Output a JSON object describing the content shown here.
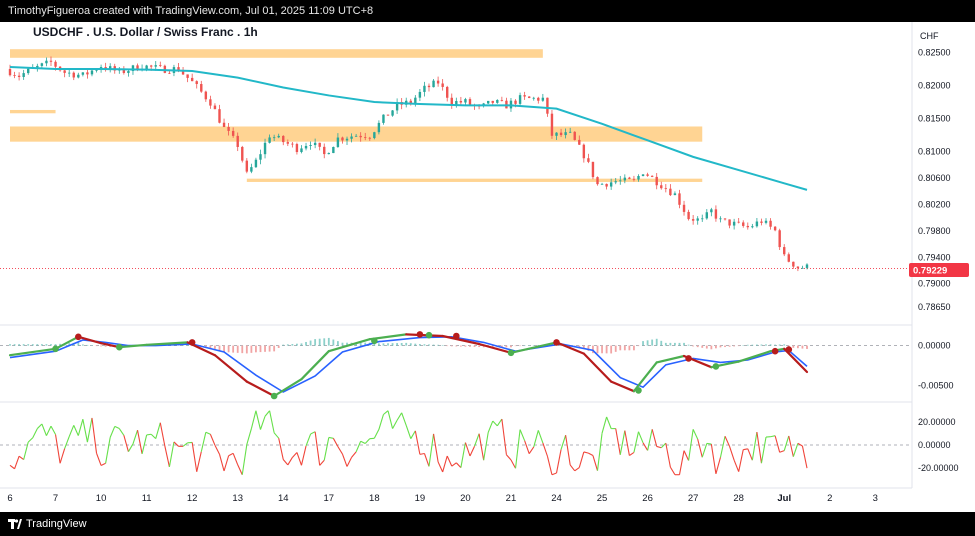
{
  "header": {
    "attribution": "TimothyFigueroa created with TradingView.com, Jul 01, 2025 11:09 UTC+8"
  },
  "footer": {
    "brand": "TradingView"
  },
  "colors": {
    "up": "#26a69a",
    "down": "#ef5350",
    "ma": "#22b8c8",
    "zone": "#ffcc80",
    "price_badge": "#f23645",
    "stoch_up": "#4caf50",
    "stoch_down": "#b71c1c"
  },
  "chart_data": {
    "type": "candlestick",
    "title": "USDCHF . U.S. Dollar / Swiss Franc . 1h",
    "currency": "CHF",
    "last_price": "0.79229",
    "price_ticks": [
      "0.82500",
      "0.82000",
      "0.81500",
      "0.81000",
      "0.80600",
      "0.80200",
      "0.79800",
      "0.79400",
      "0.79000",
      "0.78650"
    ],
    "price_tick_values": [
      0.825,
      0.82,
      0.815,
      0.81,
      0.806,
      0.802,
      0.798,
      0.794,
      0.79,
      0.7865
    ],
    "ylim": [
      0.7845,
      0.8275
    ],
    "time_labels": [
      "6",
      "7",
      "10",
      "11",
      "12",
      "13",
      "14",
      "17",
      "18",
      "19",
      "20",
      "21",
      "24",
      "25",
      "26",
      "27",
      "28",
      "Jul",
      "2",
      "3"
    ],
    "time_label_index": [
      0,
      10,
      20,
      30,
      40,
      50,
      60,
      70,
      80,
      90,
      100,
      110,
      120,
      130,
      140,
      150,
      160,
      170,
      180,
      190
    ],
    "index_range": [
      0,
      195
    ],
    "price_path": [
      [
        0,
        0.8225
      ],
      [
        3,
        0.8215
      ],
      [
        6,
        0.8225
      ],
      [
        10,
        0.8235
      ],
      [
        13,
        0.822
      ],
      [
        17,
        0.8215
      ],
      [
        21,
        0.823
      ],
      [
        25,
        0.822
      ],
      [
        30,
        0.823
      ],
      [
        34,
        0.8225
      ],
      [
        38,
        0.8225
      ],
      [
        41,
        0.8205
      ],
      [
        45,
        0.8175
      ],
      [
        48,
        0.8135
      ],
      [
        51,
        0.811
      ],
      [
        53,
        0.8065
      ],
      [
        55,
        0.8085
      ],
      [
        58,
        0.8125
      ],
      [
        61,
        0.8115
      ],
      [
        64,
        0.8105
      ],
      [
        67,
        0.8115
      ],
      [
        70,
        0.8095
      ],
      [
        73,
        0.812
      ],
      [
        77,
        0.8125
      ],
      [
        80,
        0.8125
      ],
      [
        83,
        0.815
      ],
      [
        86,
        0.817
      ],
      [
        89,
        0.8175
      ],
      [
        92,
        0.8195
      ],
      [
        95,
        0.8205
      ],
      [
        98,
        0.8175
      ],
      [
        101,
        0.8175
      ],
      [
        104,
        0.8165
      ],
      [
        107,
        0.8175
      ],
      [
        110,
        0.817
      ],
      [
        113,
        0.818
      ],
      [
        116,
        0.818
      ],
      [
        118,
        0.818
      ],
      [
        120,
        0.8125
      ],
      [
        124,
        0.8125
      ],
      [
        127,
        0.8095
      ],
      [
        130,
        0.805
      ],
      [
        134,
        0.8055
      ],
      [
        138,
        0.8055
      ],
      [
        140,
        0.807
      ],
      [
        143,
        0.8055
      ],
      [
        147,
        0.8035
      ],
      [
        150,
        0.8
      ],
      [
        153,
        0.7995
      ],
      [
        155,
        0.801
      ],
      [
        157,
        0.7995
      ],
      [
        160,
        0.799
      ],
      [
        163,
        0.7985
      ],
      [
        166,
        0.7995
      ],
      [
        169,
        0.798
      ],
      [
        171,
        0.794
      ],
      [
        174,
        0.7925
      ]
    ],
    "moving_average": [
      [
        0,
        0.8228
      ],
      [
        10,
        0.8225
      ],
      [
        20,
        0.8225
      ],
      [
        30,
        0.8224
      ],
      [
        40,
        0.8222
      ],
      [
        50,
        0.8212
      ],
      [
        60,
        0.8197
      ],
      [
        70,
        0.8185
      ],
      [
        80,
        0.8175
      ],
      [
        90,
        0.8172
      ],
      [
        100,
        0.817
      ],
      [
        110,
        0.817
      ],
      [
        120,
        0.8165
      ],
      [
        130,
        0.8142
      ],
      [
        140,
        0.8117
      ],
      [
        150,
        0.8092
      ],
      [
        160,
        0.8072
      ],
      [
        170,
        0.8052
      ],
      [
        175,
        0.8042
      ]
    ],
    "zones": [
      {
        "from_index": 0,
        "to_index": 117,
        "low": 0.8242,
        "high": 0.8255
      },
      {
        "from_index": 0,
        "to_index": 152,
        "low": 0.8115,
        "high": 0.8138
      },
      {
        "from_index": 0,
        "to_index": 10,
        "low": 0.8158,
        "high": 0.8163
      },
      {
        "from_index": 52,
        "to_index": 152,
        "low": 0.8054,
        "high": 0.8059
      }
    ],
    "oscillator": {
      "ticks": [
        "0.00000",
        "-0.00500"
      ],
      "tick_values": [
        0.0,
        -0.005
      ],
      "ylim": [
        -0.0068,
        0.0022
      ],
      "fast_path": [
        [
          0,
          -0.0012
        ],
        [
          10,
          -0.0004
        ],
        [
          15,
          0.0011
        ],
        [
          20,
          0.0003
        ],
        [
          24,
          -0.0002
        ],
        [
          30,
          0.0001
        ],
        [
          39,
          0.0004
        ],
        [
          45,
          -0.0012
        ],
        [
          52,
          -0.0045
        ],
        [
          58,
          -0.0063
        ],
        [
          64,
          -0.0042
        ],
        [
          70,
          -0.0007
        ],
        [
          79,
          0.0008
        ],
        [
          87,
          0.0014
        ],
        [
          95,
          0.0012
        ],
        [
          103,
          0.0002
        ],
        [
          110,
          -0.0009
        ],
        [
          120,
          0.0004
        ],
        [
          126,
          -0.001
        ],
        [
          132,
          -0.0045
        ],
        [
          137,
          -0.0057
        ],
        [
          142,
          -0.0021
        ],
        [
          148,
          -0.0013
        ],
        [
          154,
          -0.0027
        ],
        [
          160,
          -0.002
        ],
        [
          167,
          -0.0007
        ],
        [
          170,
          -0.0004
        ],
        [
          175,
          -0.0033
        ]
      ],
      "slow_path": [
        [
          0,
          -0.0015
        ],
        [
          10,
          -0.0007
        ],
        [
          16,
          0.0007
        ],
        [
          21,
          0.0004
        ],
        [
          26,
          0.0
        ],
        [
          32,
          0.0
        ],
        [
          40,
          0.0002
        ],
        [
          47,
          -0.0008
        ],
        [
          54,
          -0.0037
        ],
        [
          60,
          -0.0058
        ],
        [
          67,
          -0.0038
        ],
        [
          73,
          -0.0008
        ],
        [
          81,
          0.0005
        ],
        [
          90,
          0.001
        ],
        [
          97,
          0.0011
        ],
        [
          104,
          0.0004
        ],
        [
          111,
          -0.0007
        ],
        [
          121,
          0.0002
        ],
        [
          128,
          -0.0006
        ],
        [
          134,
          -0.004
        ],
        [
          139,
          -0.0052
        ],
        [
          144,
          -0.0024
        ],
        [
          150,
          -0.0016
        ],
        [
          156,
          -0.0021
        ],
        [
          162,
          -0.0018
        ],
        [
          168,
          -0.0008
        ],
        [
          171,
          -0.0006
        ],
        [
          175,
          -0.0026
        ]
      ],
      "cross_up": [
        [
          10,
          -0.0004
        ],
        [
          24,
          -0.0002
        ],
        [
          58,
          -0.0063
        ],
        [
          80,
          0.0006
        ],
        [
          92,
          0.0013
        ],
        [
          110,
          -0.0009
        ],
        [
          138,
          -0.0056
        ],
        [
          155,
          -0.0026
        ]
      ],
      "cross_down": [
        [
          15,
          0.0011
        ],
        [
          40,
          0.0004
        ],
        [
          90,
          0.0014
        ],
        [
          98,
          0.0012
        ],
        [
          120,
          0.0004
        ],
        [
          149,
          -0.0016
        ],
        [
          168,
          -0.0007
        ],
        [
          171,
          -0.0005
        ]
      ]
    },
    "momentum": {
      "ticks": [
        "20.00000",
        "0.00000",
        "-20.00000"
      ],
      "tick_values": [
        20,
        0,
        -20
      ],
      "ylim": [
        -35,
        35
      ]
    }
  }
}
